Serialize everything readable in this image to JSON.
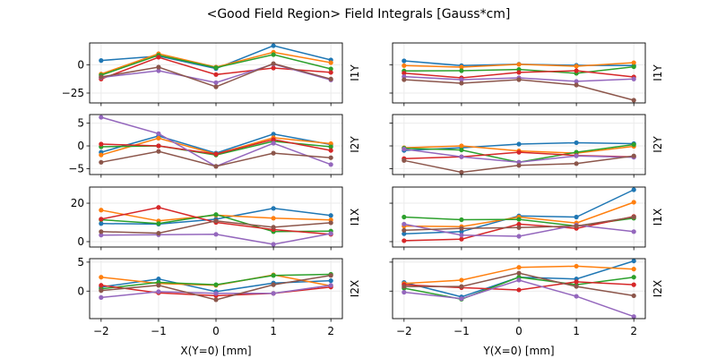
{
  "title": "<Good Field Region> Field Integrals [Gauss*cm]",
  "colors": [
    "#1f77b4",
    "#ff7f0e",
    "#2ca02c",
    "#d62728",
    "#9467bd",
    "#8c564b"
  ],
  "chart_data": [
    {
      "type": "line",
      "panel": "left-I1Y",
      "ylabel": "I1Y",
      "x": [
        -2,
        -1,
        0,
        1,
        2
      ],
      "xlim": [
        -2.2,
        2.2
      ],
      "ylim": [
        -33.7,
        19.2
      ],
      "yticks": [
        -25,
        0
      ],
      "xticks": [],
      "grid": true,
      "series": [
        {
          "values": [
            3.7,
            7.6,
            -3.4,
            16.8,
            4.2
          ]
        },
        {
          "values": [
            -8.2,
            9.7,
            -2.1,
            11,
            1.8
          ]
        },
        {
          "values": [
            -9.2,
            8.4,
            -2.6,
            8.9,
            -3.7
          ]
        },
        {
          "values": [
            -12.6,
            6.6,
            -8.7,
            -2.9,
            -6.8
          ]
        },
        {
          "values": [
            -11.3,
            -5.3,
            -15.8,
            0.5,
            -13.4
          ]
        },
        {
          "values": [
            -10.8,
            -2.1,
            -19.5,
            1,
            -12.6
          ]
        }
      ]
    },
    {
      "type": "line",
      "panel": "right-I1Y",
      "ylabel": "I1Y",
      "x": [
        -2,
        -1,
        0,
        1,
        2
      ],
      "xlim": [
        -2.2,
        2.2
      ],
      "ylim": [
        -33.7,
        19.2
      ],
      "yticks": [],
      "xticks": [],
      "grid": true,
      "series": [
        {
          "values": [
            3.4,
            -0.8,
            0.5,
            -0.5,
            -0.8
          ]
        },
        {
          "values": [
            -0.8,
            -2.1,
            0.3,
            -1.3,
            1.8
          ]
        },
        {
          "values": [
            -5.5,
            -5.3,
            -4.2,
            -7.6,
            -1.8
          ]
        },
        {
          "values": [
            -7.4,
            -11.6,
            -6.8,
            -5.3,
            -10.8
          ]
        },
        {
          "values": [
            -10.5,
            -13.2,
            -11.6,
            -14.7,
            -12.6
          ]
        },
        {
          "values": [
            -13.2,
            -16.3,
            -13.2,
            -17.9,
            -31.3
          ]
        }
      ]
    },
    {
      "type": "line",
      "panel": "left-I2Y",
      "ylabel": "I2Y",
      "x": [
        -2,
        -1,
        0,
        1,
        2
      ],
      "xlim": [
        -2.2,
        2.2
      ],
      "ylim": [
        -6.3,
        6.9
      ],
      "yticks": [
        -5,
        0,
        5
      ],
      "xticks": [],
      "grid": true,
      "series": [
        {
          "values": [
            -1.4,
            2.2,
            -1.6,
            2.6,
            0.3
          ]
        },
        {
          "values": [
            -2.0,
            1.7,
            -1.8,
            1.8,
            0.5
          ]
        },
        {
          "values": [
            -0.2,
            0,
            -2.0,
            1.0,
            -0.2
          ]
        },
        {
          "values": [
            0.4,
            0,
            -1.8,
            1.4,
            -1.0
          ]
        },
        {
          "values": [
            6.3,
            2.7,
            -4.5,
            0.6,
            -4.1
          ]
        },
        {
          "values": [
            -3.6,
            -1.2,
            -4.5,
            -1.6,
            -2.6
          ]
        }
      ]
    },
    {
      "type": "line",
      "panel": "right-I2Y",
      "ylabel": "I2Y",
      "x": [
        -2,
        -1,
        0,
        1,
        2
      ],
      "xlim": [
        -2.2,
        2.2
      ],
      "ylim": [
        -6.3,
        6.9
      ],
      "yticks": [],
      "xticks": [],
      "grid": true,
      "series": [
        {
          "values": [
            -1.0,
            -0.4,
            0.4,
            0.7,
            0.5
          ]
        },
        {
          "values": [
            -0.4,
            0,
            -1.1,
            -1.6,
            -0.1
          ]
        },
        {
          "values": [
            -0.5,
            -0.9,
            -3.6,
            -1.4,
            0.3
          ]
        },
        {
          "values": [
            -2.8,
            -2.4,
            -1.4,
            -2.1,
            -2.4
          ]
        },
        {
          "values": [
            -0.7,
            -2.4,
            -3.6,
            -2.2,
            -2.5
          ]
        },
        {
          "values": [
            -3.2,
            -5.8,
            -4.3,
            -3.9,
            -2.2
          ]
        }
      ]
    },
    {
      "type": "line",
      "panel": "left-I1X",
      "ylabel": "I1X",
      "x": [
        -2,
        -1,
        0,
        1,
        2
      ],
      "xlim": [
        -2.2,
        2.2
      ],
      "ylim": [
        -2.8,
        28.4
      ],
      "yticks": [
        0,
        20
      ],
      "xticks": [],
      "grid": true,
      "series": [
        {
          "values": [
            9.4,
            9.1,
            11.7,
            17.3,
            13.6
          ]
        },
        {
          "values": [
            16.4,
            10.8,
            13.8,
            12.2,
            11.3
          ]
        },
        {
          "values": [
            11.4,
            9.4,
            14.1,
            5.2,
            5.5
          ]
        },
        {
          "values": [
            11.7,
            17.8,
            10.0,
            6.3,
            3.8
          ]
        },
        {
          "values": [
            3.4,
            3.6,
            3.8,
            -1.4,
            4.2
          ]
        },
        {
          "values": [
            5.2,
            4.4,
            10.8,
            7.5,
            9.8
          ]
        }
      ]
    },
    {
      "type": "line",
      "panel": "right-I1X",
      "ylabel": "I1X",
      "x": [
        -2,
        -1,
        0,
        1,
        2
      ],
      "xlim": [
        -2.2,
        2.2
      ],
      "ylim": [
        -2.8,
        28.4
      ],
      "yticks": [],
      "xticks": [],
      "grid": true,
      "series": [
        {
          "values": [
            4.1,
            5.2,
            13.4,
            12.8,
            27.0
          ]
        },
        {
          "values": [
            8.1,
            7.8,
            12.8,
            9.7,
            20.5
          ]
        },
        {
          "values": [
            12.8,
            11.4,
            11.6,
            8.1,
            12.2
          ]
        },
        {
          "values": [
            0.5,
            1.3,
            9.1,
            6.9,
            13.1
          ]
        },
        {
          "values": [
            9.1,
            3.4,
            2.8,
            8.6,
            5.2
          ]
        },
        {
          "values": [
            5.9,
            6.9,
            7.3,
            8.1,
            12.8
          ]
        }
      ]
    },
    {
      "type": "line",
      "panel": "left-I2X",
      "ylabel": "I2X",
      "xlabel": "X(Y=0) [mm]",
      "x": [
        -2,
        -1,
        0,
        1,
        2
      ],
      "xlim": [
        -2.2,
        2.2
      ],
      "ylim": [
        -4.75,
        5.6
      ],
      "yticks": [
        0,
        5
      ],
      "xticks": [
        -2,
        -1,
        0,
        1,
        2
      ],
      "xticklabels": [
        "−2",
        "−1",
        "0",
        "1",
        "2"
      ],
      "grid": true,
      "series": [
        {
          "values": [
            0.7,
            2.1,
            -0.1,
            1.4,
            1.8
          ]
        },
        {
          "values": [
            2.4,
            1.3,
            1.0,
            2.8,
            0.9
          ]
        },
        {
          "values": [
            0.4,
            1.5,
            1.1,
            2.7,
            2.9
          ]
        },
        {
          "values": [
            1.0,
            -0.3,
            -0.8,
            -0.4,
            0.7
          ]
        },
        {
          "values": [
            -1.1,
            -0.1,
            -0.4,
            -0.4,
            1.0
          ]
        },
        {
          "values": [
            0.1,
            1.0,
            -1.5,
            1.1,
            2.7
          ]
        }
      ]
    },
    {
      "type": "line",
      "panel": "right-I2X",
      "ylabel": "I2X",
      "xlabel": "Y(X=0) [mm]",
      "x": [
        -2,
        -1,
        0,
        1,
        2
      ],
      "xlim": [
        -2.2,
        2.2
      ],
      "ylim": [
        -4.75,
        5.6
      ],
      "yticks": [],
      "xticks": [
        -2,
        -1,
        0,
        1,
        2
      ],
      "xticklabels": [
        "−2",
        "−1",
        "0",
        "1",
        "2"
      ],
      "grid": true,
      "series": [
        {
          "values": [
            1.5,
            -1.0,
            2.4,
            2.1,
            5.2
          ]
        },
        {
          "values": [
            1.3,
            1.9,
            4.1,
            4.3,
            3.8
          ]
        },
        {
          "values": [
            0.5,
            -1.4,
            2.4,
            1.1,
            2.4
          ]
        },
        {
          "values": [
            1.1,
            0.6,
            0.2,
            1.6,
            1.1
          ]
        },
        {
          "values": [
            -0.2,
            -1.3,
            1.9,
            -0.9,
            -4.4
          ]
        },
        {
          "values": [
            0.8,
            0.8,
            3.1,
            0.8,
            -0.8
          ]
        }
      ]
    }
  ]
}
